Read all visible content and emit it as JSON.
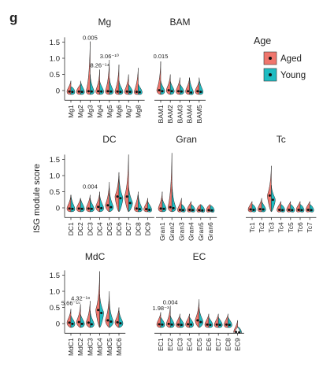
{
  "panel_letter": "g",
  "y_label": "ISG module score",
  "legend": {
    "title": "Age",
    "items": [
      {
        "label": "Aged",
        "color": "#F0766D"
      },
      {
        "label": "Young",
        "color": "#1FBCC2"
      }
    ]
  },
  "chart_data": [
    {
      "type": "violin",
      "title": "Mg",
      "ylim": [
        -0.3,
        1.65
      ],
      "yticks": [
        0,
        0.5,
        1.0,
        1.5
      ],
      "ytick_labels": [
        "0",
        "0.5",
        "1.0",
        "1.5"
      ],
      "categories": [
        "Mg1",
        "Mg2",
        "Mg3",
        "Mg4",
        "Mg5",
        "Mg6",
        "Mg7",
        "Mg8"
      ],
      "aged_max": [
        0.3,
        0.2,
        1.52,
        0.65,
        0.95,
        0.8,
        0.5,
        0.7
      ],
      "young_max": [
        0.1,
        0.3,
        0.5,
        0.3,
        0.4,
        0.3,
        0.2,
        0.2
      ],
      "aged_mean": [
        -0.03,
        -0.03,
        -0.02,
        -0.02,
        -0.02,
        -0.03,
        -0.03,
        -0.04
      ],
      "young_mean": [
        -0.04,
        -0.04,
        -0.03,
        -0.03,
        -0.03,
        -0.04,
        -0.04,
        -0.05
      ],
      "annotations": [
        {
          "cat": 2,
          "y": 1.57,
          "text": "0.005"
        },
        {
          "cat": 3,
          "y": 0.72,
          "text": "8.26⁻¹⁴"
        },
        {
          "cat": 4,
          "y": 1.0,
          "text": "3.06⁻¹⁰"
        }
      ]
    },
    {
      "type": "violin",
      "title": "BAM",
      "ylim": [
        -0.3,
        1.65
      ],
      "yticks": [
        0,
        0.5,
        1.0,
        1.5
      ],
      "ytick_labels": [
        "0",
        "0.5",
        "1.0",
        "1.5"
      ],
      "categories": [
        "BAM1",
        "BAM2",
        "BAM3",
        "BAM4",
        "BAM5"
      ],
      "aged_max": [
        0.9,
        0.5,
        0.4,
        0.4,
        0.3
      ],
      "young_max": [
        0.3,
        0.3,
        0.2,
        0.4,
        0.4
      ],
      "aged_mean": [
        0.01,
        0.01,
        -0.02,
        -0.02,
        -0.02
      ],
      "young_mean": [
        -0.02,
        -0.02,
        -0.03,
        -0.06,
        -0.04
      ],
      "annotations": [
        {
          "cat": 0,
          "y": 1.0,
          "text": "0.015"
        }
      ]
    },
    {
      "type": "violin",
      "title": "DC",
      "ylim": [
        -0.3,
        1.65
      ],
      "yticks": [
        0,
        0.5,
        1.0,
        1.5
      ],
      "ytick_labels": [
        "0",
        "0.5",
        "1.0",
        "1.5"
      ],
      "categories": [
        "DC1",
        "DC2",
        "DC3",
        "DC4",
        "DC5",
        "DC6",
        "DC7",
        "DC8",
        "DC9"
      ],
      "aged_max": [
        0.4,
        0.3,
        0.4,
        0.5,
        0.8,
        1.1,
        1.65,
        0.5,
        0.3
      ],
      "young_max": [
        0.4,
        0.3,
        0.3,
        0.4,
        0.6,
        1.0,
        0.7,
        0.4,
        0.2
      ],
      "aged_mean": [
        -0.02,
        -0.02,
        -0.02,
        0.03,
        0.08,
        0.35,
        0.35,
        -0.02,
        -0.04
      ],
      "young_mean": [
        -0.03,
        -0.03,
        -0.03,
        -0.01,
        0.02,
        0.3,
        0.15,
        -0.04,
        -0.06
      ],
      "annotations": [
        {
          "cat": 2,
          "y": 0.6,
          "text": "0.004"
        }
      ]
    },
    {
      "type": "violin",
      "title": "Gran",
      "ylim": [
        -0.3,
        1.65
      ],
      "yticks": [
        0,
        0.5,
        1.0,
        1.5
      ],
      "ytick_labels": [
        "0",
        "0.5",
        "1.0",
        "1.5"
      ],
      "categories": [
        "Gran1",
        "Gran2",
        "Gran3",
        "Gran4",
        "Gran5",
        "Gran6"
      ],
      "aged_max": [
        0.5,
        1.7,
        0.3,
        0.2,
        0.1,
        0.1
      ],
      "young_max": [
        0.3,
        0.8,
        0.1,
        0.1,
        0.1,
        0.05
      ],
      "aged_mean": [
        -0.02,
        0.02,
        -0.06,
        -0.06,
        -0.07,
        -0.07
      ],
      "young_mean": [
        -0.03,
        -0.01,
        -0.07,
        -0.07,
        -0.08,
        -0.08
      ],
      "annotations": []
    },
    {
      "type": "violin",
      "title": "Tc",
      "ylim": [
        -0.3,
        1.65
      ],
      "yticks": [
        0,
        0.5,
        1.0,
        1.5
      ],
      "ytick_labels": [
        "0",
        "0.5",
        "1.0",
        "1.5"
      ],
      "categories": [
        "Tc1",
        "Tc2",
        "Tc3",
        "Tc4",
        "Tc5",
        "Tc6",
        "Tc7"
      ],
      "aged_max": [
        0.2,
        0.3,
        1.3,
        0.2,
        0.2,
        0.2,
        0.2
      ],
      "young_max": [
        0.1,
        0.2,
        0.7,
        0.1,
        0.1,
        0.1,
        0.1
      ],
      "aged_mean": [
        -0.05,
        -0.04,
        0.38,
        -0.06,
        -0.06,
        -0.06,
        -0.06
      ],
      "young_mean": [
        -0.06,
        -0.05,
        0.25,
        -0.07,
        -0.07,
        -0.07,
        -0.07
      ],
      "annotations": []
    },
    {
      "type": "violin",
      "title": "MdC",
      "ylim": [
        -0.3,
        1.65
      ],
      "yticks": [
        0,
        0.5,
        1.0,
        1.5
      ],
      "ytick_labels": [
        "0",
        "0.5",
        "1.0",
        "1.5"
      ],
      "categories": [
        "MdC1",
        "MdC2",
        "MdC3",
        "MdC4",
        "MdC5",
        "MdC6"
      ],
      "aged_max": [
        0.45,
        0.6,
        0.7,
        1.62,
        1.0,
        0.5
      ],
      "young_max": [
        0.25,
        0.3,
        0.4,
        0.9,
        0.7,
        0.4
      ],
      "aged_mean": [
        0.03,
        0.05,
        0.03,
        0.42,
        0.1,
        0.04
      ],
      "young_mean": [
        -0.01,
        -0.01,
        -0.02,
        0.33,
        0.06,
        0.01
      ],
      "annotations": [
        {
          "cat": 0,
          "y": 0.57,
          "text": "5.66⁻¹⁵"
        },
        {
          "cat": 1,
          "y": 0.72,
          "text": "4.32⁻¹⁸"
        }
      ]
    },
    {
      "type": "violin",
      "title": "EC",
      "ylim": [
        -0.3,
        1.65
      ],
      "yticks": [
        0,
        0.5,
        1.0,
        1.5
      ],
      "ytick_labels": [
        "0",
        "0.5",
        "1.0",
        "1.5"
      ],
      "categories": [
        "EC1",
        "EC2",
        "EC3",
        "EC4",
        "EC5",
        "EC6",
        "EC7",
        "EC8",
        "EC9"
      ],
      "aged_max": [
        0.35,
        0.55,
        0.3,
        0.3,
        0.75,
        0.3,
        0.3,
        0.3,
        0.1
      ],
      "young_max": [
        0.2,
        0.25,
        0.2,
        0.2,
        0.5,
        0.2,
        0.2,
        0.2,
        -0.1
      ],
      "aged_mean": [
        -0.02,
        -0.01,
        -0.03,
        -0.02,
        0.1,
        -0.03,
        -0.03,
        -0.03,
        -0.26
      ],
      "young_mean": [
        -0.03,
        -0.03,
        -0.04,
        -0.03,
        0.05,
        -0.04,
        -0.04,
        -0.04,
        -0.27
      ],
      "annotations": [
        {
          "cat": 0,
          "y": 0.42,
          "text": "1.98⁻³"
        },
        {
          "cat": 1,
          "y": 0.6,
          "text": "0.004"
        }
      ]
    }
  ]
}
